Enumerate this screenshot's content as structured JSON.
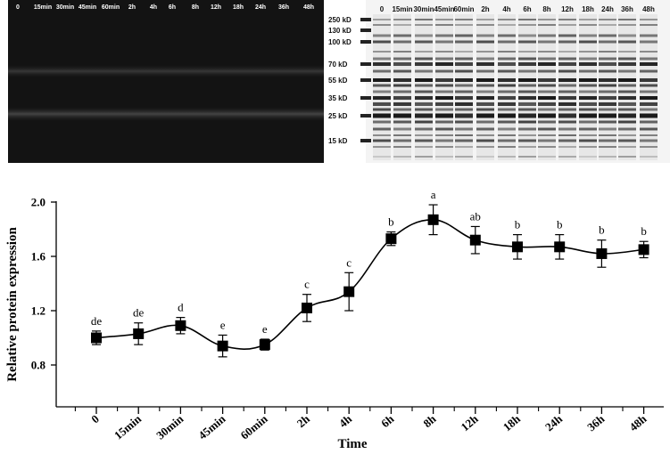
{
  "western_blot": {
    "lane_labels": [
      "0",
      "15min",
      "30min",
      "45min",
      "60min",
      "2h",
      "4h",
      "6h",
      "8h",
      "12h",
      "18h",
      "24h",
      "36h",
      "48h"
    ]
  },
  "total_protein_gel": {
    "lane_labels": [
      "0",
      "15min",
      "30min",
      "45min",
      "60min",
      "2h",
      "4h",
      "6h",
      "8h",
      "12h",
      "18h",
      "24h",
      "36h",
      "48h"
    ],
    "markers": [
      "250 kD",
      "130 kD",
      "100 kD",
      "70 kD",
      "55 kD",
      "35 kD",
      "25 kD",
      "15 kD"
    ]
  },
  "chart_data": {
    "type": "line",
    "categories": [
      "0",
      "15min",
      "30min",
      "45min",
      "60min",
      "2h",
      "4h",
      "6h",
      "8h",
      "12h",
      "18h",
      "24h",
      "36h",
      "48h"
    ],
    "values": [
      1.0,
      1.03,
      1.09,
      0.94,
      0.95,
      1.22,
      1.34,
      1.73,
      1.87,
      1.72,
      1.67,
      1.67,
      1.62,
      1.65
    ],
    "errors": [
      0.05,
      0.08,
      0.06,
      0.08,
      0.04,
      0.1,
      0.14,
      0.05,
      0.11,
      0.1,
      0.09,
      0.09,
      0.1,
      0.06
    ],
    "significance": [
      "de",
      "de",
      "d",
      "e",
      "e",
      "c",
      "c",
      "b",
      "a",
      "ab",
      "b",
      "b",
      "b",
      "b"
    ],
    "xlabel": "Time",
    "ylabel": "Relative protein expression",
    "ylim": [
      0.6,
      2.0
    ],
    "yticks": [
      "0.8",
      "1.2",
      "1.6",
      "2.0"
    ],
    "grid": false,
    "marker": "square",
    "color": "#000000"
  }
}
